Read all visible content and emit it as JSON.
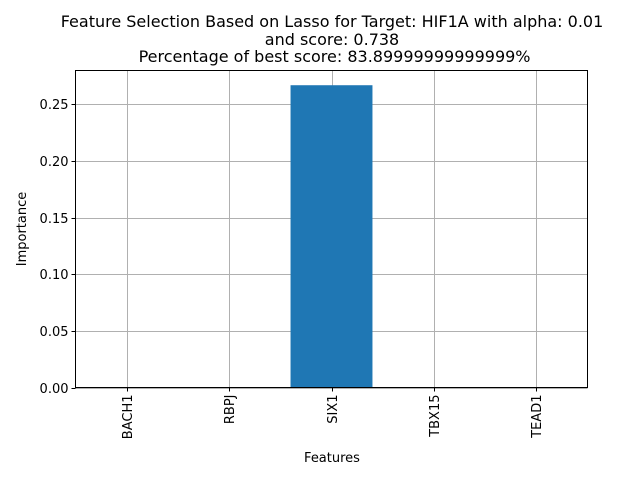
{
  "chart_data": {
    "type": "bar",
    "title_lines": [
      "Feature Selection Based on Lasso for Target: HIF1A with alpha: 0.01",
      "and score: 0.738",
      " Percentage of best score: 83.89999999999999%"
    ],
    "xlabel": "Features",
    "ylabel": "Importance",
    "categories": [
      "BACH1",
      "RBPJ",
      "SIX1",
      "TBX15",
      "TEAD1"
    ],
    "values": [
      0.0,
      0.0,
      0.267,
      0.0,
      0.0
    ],
    "ylim": [
      0.0,
      0.28
    ],
    "yticks": [
      0.0,
      0.05,
      0.1,
      0.15,
      0.2,
      0.25
    ],
    "ytick_labels": [
      "0.00",
      "0.05",
      "0.10",
      "0.15",
      "0.20",
      "0.25"
    ],
    "grid": true,
    "bar_color": "#1f77b4",
    "grid_color": "#b0b0b0"
  }
}
